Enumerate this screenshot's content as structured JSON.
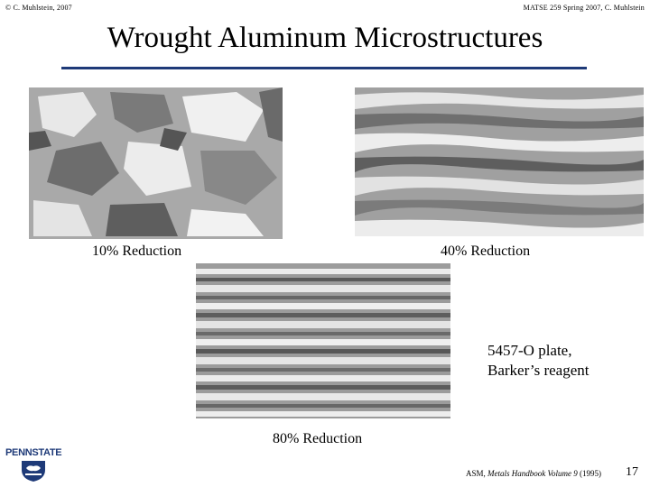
{
  "header": {
    "left": "© C. Muhlstein, 2007",
    "right": "MATSE 259 Spring 2007, C. Muhlstein"
  },
  "slide": {
    "title": "Wrought Aluminum Microstructures",
    "page_number": "17"
  },
  "images": [
    {
      "id": "m10",
      "label": "10% Reduction"
    },
    {
      "id": "m40",
      "label": "40% Reduction"
    },
    {
      "id": "m80",
      "label": "80% Reduction"
    }
  ],
  "plate_note": {
    "line1": "5457-O plate,",
    "line2": "Barker’s reagent"
  },
  "citation": {
    "prefix": "ASM, ",
    "book": "Metals Handbook Volume 9",
    "suffix": " (1995)"
  },
  "logo": {
    "text": "PENNSTATE",
    "icon": "nittany-lion-shield-icon"
  },
  "colors": {
    "accent": "#1e3a78"
  }
}
